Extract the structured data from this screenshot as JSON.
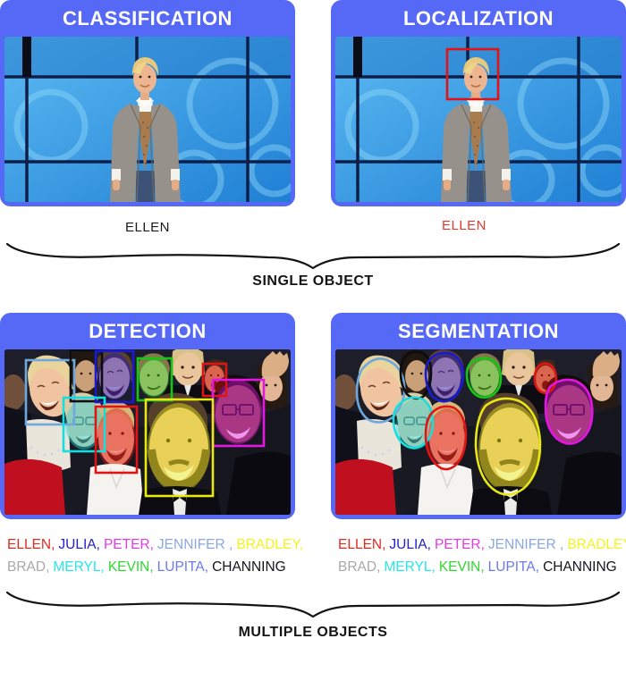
{
  "sections": {
    "single_object": "SINGLE OBJECT",
    "multiple_objects": "MULTIPLE OBJECTS"
  },
  "cards": {
    "classification": {
      "title": "CLASSIFICATION",
      "caption": "ELLEN",
      "caption_color": "#1c1c1c"
    },
    "localization": {
      "title": "LOCALIZATION",
      "caption": "ELLEN",
      "caption_color": "#e03a30",
      "box_color": "#e01414"
    },
    "detection": {
      "title": "DETECTION"
    },
    "segmentation": {
      "title": "SEGMENTATION"
    }
  },
  "colors": {
    "accent": "#5569f6",
    "brace": "#141414",
    "overlays": {
      "ellen": "#e01414",
      "julia": "#1a1ad0",
      "peter": "#e316e3",
      "jennifer": "#6fa8dc",
      "bradley": "#e8e812",
      "brad_cameo": "#dd1515",
      "meryl": "#17dede",
      "kevin": "#17c517",
      "jared": "#0d0d0d"
    }
  },
  "captions": {
    "line1": [
      {
        "label": "ELLEN,",
        "color": "#e02b20"
      },
      {
        "label": "JULIA,",
        "color": "#2222cc"
      },
      {
        "label": "PETER,",
        "color": "#e63ae6"
      },
      {
        "label": "JENNIFER ,",
        "color": "#8aa7de"
      },
      {
        "label": "BRADLEY,",
        "color": "#f4f41a"
      }
    ],
    "line2": [
      {
        "label": "BRAD,",
        "color": "#a8a8a8"
      },
      {
        "label": "MERYL,",
        "color": "#26e8e8"
      },
      {
        "label": "KEVIN,",
        "color": "#30d830"
      },
      {
        "label": "LUPITA,",
        "color": "#6b79ea"
      },
      {
        "label": "CHANNING",
        "color": "#15151d"
      }
    ]
  }
}
